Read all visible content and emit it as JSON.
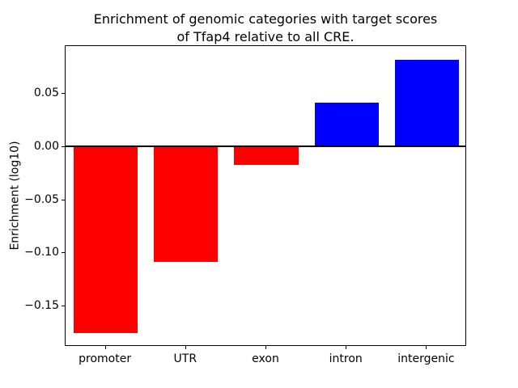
{
  "title_line1": "Enrichment of genomic categories with target scores",
  "title_line2": "of Tfap4 relative to all CRE.",
  "ylabel": "Enrichment (log10)",
  "colors": {
    "negative_bar": "#ff0000",
    "positive_bar": "#0000ff",
    "axis": "#000000",
    "background": "#ffffff"
  },
  "chart_data": {
    "type": "bar",
    "title": "Enrichment of genomic categories with target scores\nof Tfap4 relative to all CRE.",
    "xlabel": "",
    "ylabel": "Enrichment (log10)",
    "categories": [
      "promoter",
      "UTR",
      "exon",
      "intron",
      "intergenic"
    ],
    "values": [
      -0.175,
      -0.108,
      -0.017,
      0.042,
      0.082
    ],
    "bar_colors": [
      "#ff0000",
      "#ff0000",
      "#ff0000",
      "#0000ff",
      "#0000ff"
    ],
    "ylim": [
      -0.188,
      0.095
    ],
    "yticks": [
      0.05,
      0.0,
      -0.05,
      -0.1,
      -0.15
    ],
    "ytick_labels": [
      "0.05",
      "0.00",
      "−0.05",
      "−0.10",
      "−0.15"
    ],
    "zero_line": true,
    "grid": false,
    "legend": false,
    "bar_width_fraction": 0.8
  }
}
